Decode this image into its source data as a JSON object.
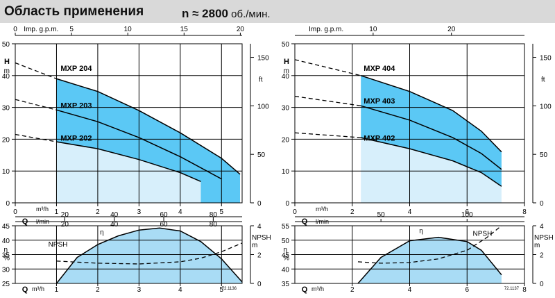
{
  "header": {
    "title": "Область применения",
    "speed_prefix": "n ≈ 2800",
    "speed_unit": "об./мин."
  },
  "colors": {
    "envelope_dark": "#5bc8f5",
    "envelope_light": "#d7effb",
    "efficiency_fill": "#a9dcf5",
    "grid": "#000000",
    "header_bg": "#d9d9d9"
  },
  "chart_data": [
    {
      "id": "left-head",
      "type": "line",
      "xlabel": "Q",
      "xunit_top": "m³/h",
      "xunit_bottom": "l/min",
      "xlim": [
        0,
        5.5
      ],
      "xticks": [
        0,
        1,
        2,
        3,
        4,
        5
      ],
      "ylabel": "H",
      "yunit": "m",
      "ylim": [
        0,
        50
      ],
      "yticks": [
        0,
        10,
        20,
        30,
        40,
        50
      ],
      "top_axis": {
        "label": "Imp. g.p.m.",
        "ticks": [
          0,
          5,
          10,
          15,
          20
        ],
        "max": 20.16
      },
      "lmin_axis": {
        "ticks": [
          20,
          40,
          60,
          80
        ],
        "max": 91.67
      },
      "ft_axis": {
        "label": "ft",
        "ticks": [
          0,
          50,
          100,
          150
        ],
        "max": 164
      },
      "series": [
        {
          "name": "MXP 204",
          "dashed": [
            [
              0,
              44
            ],
            [
              1,
              39
            ]
          ],
          "solid": [
            [
              1,
              39
            ],
            [
              2,
              35
            ],
            [
              3,
              29
            ],
            [
              4,
              22
            ],
            [
              5,
              14
            ],
            [
              5.45,
              9
            ]
          ]
        },
        {
          "name": "MXP 203",
          "dashed": [
            [
              0,
              32.5
            ],
            [
              1,
              29.2
            ]
          ],
          "solid": [
            [
              1,
              29.2
            ],
            [
              2,
              25.5
            ],
            [
              3,
              20.5
            ],
            [
              4,
              14.5
            ],
            [
              5,
              7.5
            ]
          ]
        },
        {
          "name": "MXP 202",
          "dashed": [
            [
              0,
              21.5
            ],
            [
              1,
              19.2
            ]
          ],
          "solid": [
            [
              1,
              19.2
            ],
            [
              2,
              17
            ],
            [
              3,
              13.6
            ],
            [
              4,
              9.5
            ],
            [
              4.5,
              6.7
            ]
          ]
        }
      ],
      "envelope_upper": [
        [
          1,
          39
        ],
        [
          2,
          35
        ],
        [
          3,
          29
        ],
        [
          4,
          22
        ],
        [
          5,
          14
        ],
        [
          5.45,
          9
        ]
      ],
      "envelope_lower": [
        [
          1,
          19.2
        ],
        [
          2,
          17
        ],
        [
          3,
          13.6
        ],
        [
          4,
          9.5
        ],
        [
          4.5,
          6.7
        ]
      ],
      "envelope_xmin": 1,
      "envelope_xmax": 5.45
    },
    {
      "id": "right-head",
      "type": "line",
      "xlabel": "Q",
      "xunit_top": "m³/h",
      "xunit_bottom": "l/min",
      "xlim": [
        0,
        8
      ],
      "xticks": [
        0,
        2,
        4,
        6,
        8
      ],
      "ylabel": "H",
      "yunit": "m",
      "ylim": [
        0,
        50
      ],
      "yticks": [
        0,
        10,
        20,
        30,
        40,
        50
      ],
      "top_axis": {
        "label": "Imp. g.p.m.",
        "ticks": [
          10,
          20
        ],
        "max": 29.33
      },
      "ft_axis": {
        "label": "ft",
        "ticks": [
          0,
          50,
          100,
          150
        ],
        "max": 164
      },
      "series": [
        {
          "name": "MXP 404",
          "dashed": [
            [
              0,
              45
            ],
            [
              2.3,
              40
            ]
          ],
          "solid": [
            [
              2.3,
              40
            ],
            [
              4,
              35
            ],
            [
              5.5,
              29
            ],
            [
              6.5,
              22.5
            ],
            [
              7.2,
              16
            ]
          ]
        },
        {
          "name": "MXP 403",
          "dashed": [
            [
              0,
              33.5
            ],
            [
              2.3,
              30.5
            ]
          ],
          "solid": [
            [
              2.3,
              30.5
            ],
            [
              4,
              26
            ],
            [
              5.5,
              20.5
            ],
            [
              6.5,
              15.5
            ],
            [
              7.2,
              10.5
            ]
          ]
        },
        {
          "name": "MXP 402",
          "dashed": [
            [
              0,
              22
            ],
            [
              2.3,
              20.5
            ]
          ],
          "solid": [
            [
              2.3,
              20.5
            ],
            [
              4,
              17
            ],
            [
              5.5,
              13.2
            ],
            [
              6.5,
              9.5
            ],
            [
              7.2,
              5.2
            ]
          ]
        }
      ],
      "envelope_upper": [
        [
          2.3,
          40
        ],
        [
          4,
          35
        ],
        [
          5.5,
          29
        ],
        [
          6.5,
          22.5
        ],
        [
          7.2,
          16
        ]
      ],
      "envelope_lower": [
        [
          2.3,
          20.5
        ],
        [
          4,
          17
        ],
        [
          5.5,
          13.2
        ],
        [
          6.5,
          9.5
        ],
        [
          7.2,
          5.2
        ]
      ],
      "envelope_xmin": 2.3,
      "envelope_xmax": 7.2
    },
    {
      "id": "left-efficiency",
      "type": "area",
      "xlabel": "Q",
      "xunit": "m³/h",
      "xlim": [
        0,
        5.5
      ],
      "xticks": [
        1,
        2,
        3,
        4,
        5
      ],
      "ylabel": "η",
      "yunit": "%",
      "ylim": [
        25,
        45
      ],
      "yticks": [
        25,
        30,
        35,
        40,
        45
      ],
      "npsh_axis": {
        "label": "NPSH",
        "unit": "m",
        "ticks": [
          0,
          2,
          4
        ],
        "max": 4
      },
      "efficiency_label": "η",
      "npsh_label": "NPSH",
      "efficiency": [
        [
          1,
          25
        ],
        [
          1.5,
          34
        ],
        [
          2,
          38.5
        ],
        [
          2.5,
          41.5
        ],
        [
          3,
          43.5
        ],
        [
          3.5,
          44.2
        ],
        [
          4,
          43.2
        ],
        [
          4.5,
          39.5
        ],
        [
          5,
          33.5
        ],
        [
          5.5,
          25.5
        ]
      ],
      "npsh": [
        [
          1,
          1.55
        ],
        [
          2,
          1.4
        ],
        [
          3,
          1.35
        ],
        [
          4,
          1.5
        ],
        [
          4.5,
          1.75
        ],
        [
          5,
          2.2
        ],
        [
          5.5,
          2.8
        ]
      ],
      "code": "72.1136"
    },
    {
      "id": "right-efficiency",
      "type": "area",
      "xlabel": "Q",
      "xunit": "m³/h",
      "xlim": [
        0,
        8
      ],
      "xticks": [
        2,
        4,
        6,
        8
      ],
      "top_axis": {
        "ticks": [
          50,
          100
        ],
        "max": 133.33
      },
      "ylabel": "η",
      "yunit": "%",
      "ylim": [
        35,
        55
      ],
      "yticks": [
        35,
        40,
        45,
        50,
        55
      ],
      "npsh_axis": {
        "label": "NPSH",
        "unit": "m",
        "ticks": [
          0,
          2,
          4
        ],
        "max": 4
      },
      "efficiency_label": "η",
      "npsh_label": "NPSH",
      "efficiency": [
        [
          2.2,
          35
        ],
        [
          3,
          44
        ],
        [
          4,
          49.8
        ],
        [
          5,
          51
        ],
        [
          6,
          49.5
        ],
        [
          6.5,
          46.5
        ],
        [
          7.2,
          38
        ]
      ],
      "npsh": [
        [
          2.2,
          1.5
        ],
        [
          3,
          1.4
        ],
        [
          4,
          1.45
        ],
        [
          5,
          1.7
        ],
        [
          6,
          2.3
        ],
        [
          6.7,
          3.2
        ],
        [
          7.2,
          4
        ]
      ],
      "code": "72.1137"
    }
  ]
}
